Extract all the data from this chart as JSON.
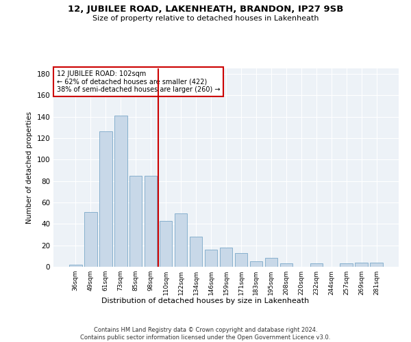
{
  "title": "12, JUBILEE ROAD, LAKENHEATH, BRANDON, IP27 9SB",
  "subtitle": "Size of property relative to detached houses in Lakenheath",
  "xlabel": "Distribution of detached houses by size in Lakenheath",
  "ylabel": "Number of detached properties",
  "categories": [
    "36sqm",
    "49sqm",
    "61sqm",
    "73sqm",
    "85sqm",
    "98sqm",
    "110sqm",
    "122sqm",
    "134sqm",
    "146sqm",
    "159sqm",
    "171sqm",
    "183sqm",
    "195sqm",
    "208sqm",
    "220sqm",
    "232sqm",
    "244sqm",
    "257sqm",
    "269sqm",
    "281sqm"
  ],
  "values": [
    2,
    51,
    126,
    141,
    85,
    85,
    43,
    50,
    28,
    16,
    18,
    13,
    5,
    8,
    3,
    0,
    3,
    0,
    3,
    4,
    4
  ],
  "bar_color": "#c8d8e8",
  "bar_edge_color": "#7aa8c8",
  "vline_x_index": 5.5,
  "vline_color": "#cc0000",
  "annotation_lines": [
    "12 JUBILEE ROAD: 102sqm",
    "← 62% of detached houses are smaller (422)",
    "38% of semi-detached houses are larger (260) →"
  ],
  "annotation_box_color": "#cc0000",
  "ylim": [
    0,
    185
  ],
  "yticks": [
    0,
    20,
    40,
    60,
    80,
    100,
    120,
    140,
    160,
    180
  ],
  "background_color": "#edf2f7",
  "footer_line1": "Contains HM Land Registry data © Crown copyright and database right 2024.",
  "footer_line2": "Contains public sector information licensed under the Open Government Licence v3.0."
}
